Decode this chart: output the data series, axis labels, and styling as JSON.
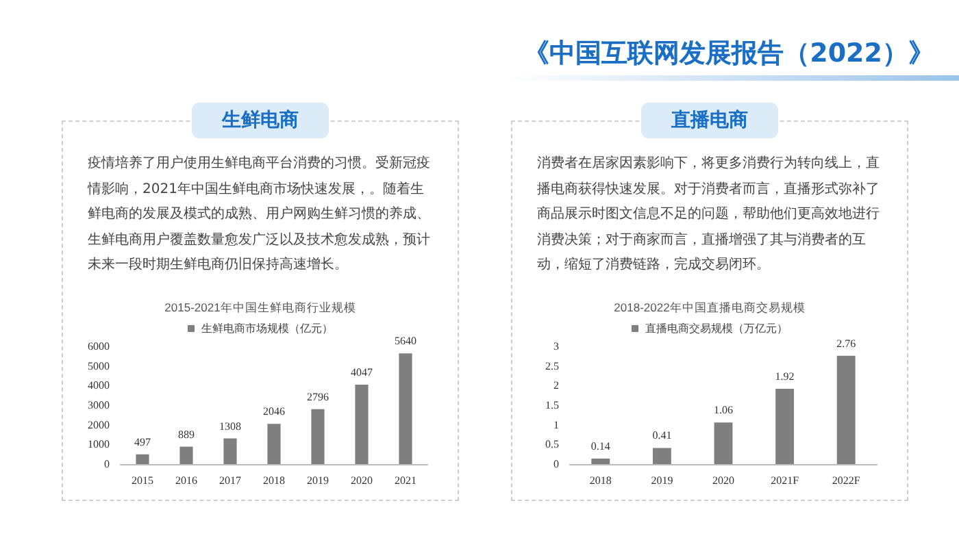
{
  "chart_data": [
    {
      "type": "bar",
      "title": "2015-2021年中国生鲜电商行业规模",
      "subtitle": "生鲜电商",
      "annotations": [
        "《中国互联网发展报告（2022）》",
        "疫情培养了用户使用生鲜电商平台消费的习惯。受新冠疫情影响，2021年中国生鲜电商市场快速发展，。随着生鲜电商的发展及模式的成熟、用户网购生鲜习惯的养成、生鲜电商用户覆盖数量愈发广泛以及技术愈发成熟，预计未来一段时期生鲜电商仍旧保持高速增长。"
      ],
      "categories": [
        "2015",
        "2016",
        "2017",
        "2018",
        "2019",
        "2020",
        "2021"
      ],
      "series": [
        {
          "name": "生鲜电商市场规模（亿元）",
          "color": "#7f7f7f",
          "values": [
            497,
            889,
            1308,
            2046,
            2796,
            4047,
            5640
          ]
        }
      ],
      "ylim": [
        0,
        6000
      ],
      "yticks": [
        0,
        1000,
        2000,
        3000,
        4000,
        5000,
        6000
      ],
      "data_labels": true,
      "legend": "top",
      "grid": false
    },
    {
      "type": "bar",
      "title": "2018-2022年中国直播电商交易规模",
      "subtitle": "直播电商",
      "annotations": [
        "消费者在居家因素影响下，将更多消费行为转向线上，直播电商获得快速发展。对于消费者而言，直播形式弥补了商品展示时图文信息不足的问题，帮助他们更高效地进行消费决策；对于商家而言，直播增强了其与消费者的互动，缩短了消费链路，完成交易闭环。"
      ],
      "categories": [
        "2018",
        "2019",
        "2020",
        "2021F",
        "2022F"
      ],
      "series": [
        {
          "name": "直播电商交易规模（万亿元）",
          "color": "#7f7f7f",
          "values": [
            0.14,
            0.41,
            1.06,
            1.92,
            2.76
          ]
        }
      ],
      "ylim": [
        0,
        3
      ],
      "yticks": [
        0,
        0.5,
        1,
        1.5,
        2,
        2.5,
        3
      ],
      "data_labels": true,
      "legend": "top",
      "grid": false
    }
  ]
}
